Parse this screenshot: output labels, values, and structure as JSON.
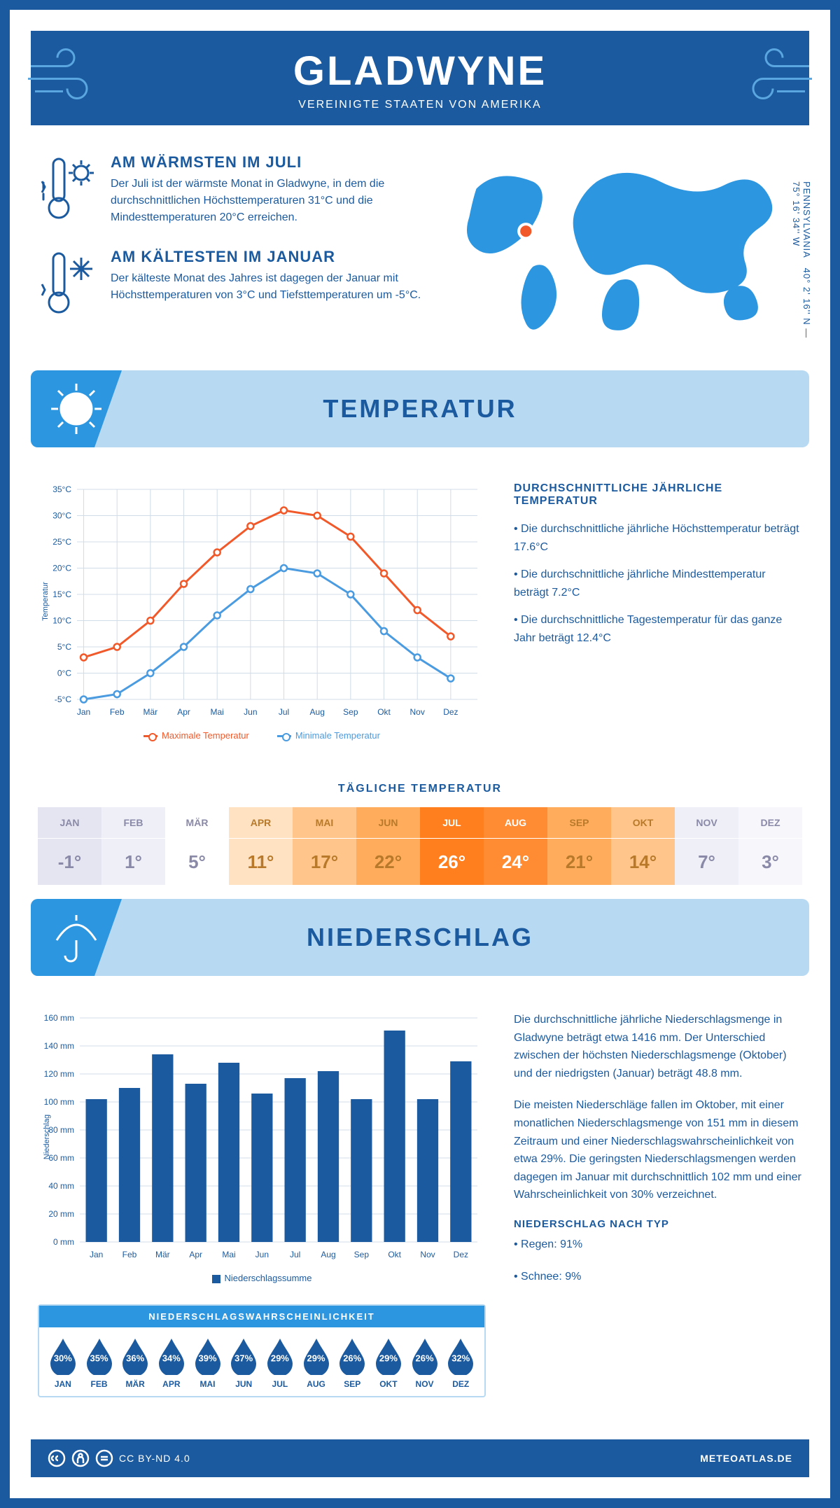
{
  "colors": {
    "brand": "#1b5a9e",
    "light_blue": "#b8d9f2",
    "accent_blue": "#2d96e0",
    "line_max": "#f1592a",
    "line_min": "#4a9be0",
    "grid": "#d0dce8"
  },
  "header": {
    "title": "GLADWYNE",
    "subtitle": "VEREINIGTE STAATEN VON AMERIKA"
  },
  "coords": {
    "line1": "40° 2' 16'' N — 75° 16' 34'' W",
    "line2": "PENNSYLVANIA"
  },
  "facts": {
    "warm_title": "AM WÄRMSTEN IM JULI",
    "warm_text": "Der Juli ist der wärmste Monat in Gladwyne, in dem die durchschnittlichen Höchsttemperaturen 31°C und die Mindesttemperaturen 20°C erreichen.",
    "cold_title": "AM KÄLTESTEN IM JANUAR",
    "cold_text": "Der kälteste Monat des Jahres ist dagegen der Januar mit Höchsttemperaturen von 3°C und Tiefsttemperaturen um -5°C."
  },
  "section_titles": {
    "temperature": "TEMPERATUR",
    "precip": "NIEDERSCHLAG"
  },
  "temp_chart": {
    "type": "line",
    "months": [
      "Jan",
      "Feb",
      "Mär",
      "Apr",
      "Mai",
      "Jun",
      "Jul",
      "Aug",
      "Sep",
      "Okt",
      "Nov",
      "Dez"
    ],
    "y_min": -5,
    "y_max": 35,
    "y_step": 5,
    "ylabel": "Temperatur",
    "series": [
      {
        "name": "Maximale Temperatur",
        "color": "#f1592a",
        "values": [
          3,
          5,
          10,
          17,
          23,
          28,
          31,
          30,
          26,
          19,
          12,
          7
        ]
      },
      {
        "name": "Minimale Temperatur",
        "color": "#4a9be0",
        "values": [
          -5,
          -4,
          0,
          5,
          11,
          16,
          20,
          19,
          15,
          8,
          3,
          -1
        ]
      }
    ],
    "legend_max": "Maximale Temperatur",
    "legend_min": "Minimale Temperatur"
  },
  "temp_text": {
    "heading": "DURCHSCHNITTLICHE JÄHRLICHE TEMPERATUR",
    "b1": "• Die durchschnittliche jährliche Höchsttemperatur beträgt 17.6°C",
    "b2": "• Die durchschnittliche jährliche Mindesttemperatur beträgt 7.2°C",
    "b3": "• Die durchschnittliche Tagestemperatur für das ganze Jahr beträgt 12.4°C"
  },
  "daily_temp": {
    "title": "TÄGLICHE TEMPERATUR",
    "months": [
      "JAN",
      "FEB",
      "MÄR",
      "APR",
      "MAI",
      "JUN",
      "JUL",
      "AUG",
      "SEP",
      "OKT",
      "NOV",
      "DEZ"
    ],
    "values": [
      "-1°",
      "1°",
      "5°",
      "11°",
      "17°",
      "22°",
      "26°",
      "24°",
      "21°",
      "14°",
      "7°",
      "3°"
    ],
    "bg_colors": [
      "#e5e5f2",
      "#efeff7",
      "#ffffff",
      "#ffe2c2",
      "#ffc58a",
      "#ffad5c",
      "#ff7f1f",
      "#ff8c33",
      "#ffad5c",
      "#ffc58a",
      "#efeff7",
      "#f7f7fb"
    ],
    "text_colors": [
      "#8a8aa8",
      "#8a8aa8",
      "#8a8aa8",
      "#b87a2a",
      "#b87a2a",
      "#b87a2a",
      "#ffffff",
      "#ffffff",
      "#b87a2a",
      "#b87a2a",
      "#8a8aa8",
      "#8a8aa8"
    ]
  },
  "precip_chart": {
    "type": "bar",
    "months": [
      "Jan",
      "Feb",
      "Mär",
      "Apr",
      "Mai",
      "Jun",
      "Jul",
      "Aug",
      "Sep",
      "Okt",
      "Nov",
      "Dez"
    ],
    "values": [
      102,
      110,
      134,
      113,
      128,
      106,
      117,
      122,
      102,
      151,
      102,
      129
    ],
    "y_min": 0,
    "y_max": 160,
    "y_step": 20,
    "ylabel": "Niederschlag",
    "bar_color": "#1b5a9e",
    "legend": "Niederschlagssumme"
  },
  "precip_text": {
    "p1": "Die durchschnittliche jährliche Niederschlagsmenge in Gladwyne beträgt etwa 1416 mm. Der Unterschied zwischen der höchsten Niederschlagsmenge (Oktober) und der niedrigsten (Januar) beträgt 48.8 mm.",
    "p2": "Die meisten Niederschläge fallen im Oktober, mit einer monatlichen Niederschlagsmenge von 151 mm in diesem Zeitraum und einer Niederschlagswahrscheinlichkeit von etwa 29%. Die geringsten Niederschlagsmengen werden dagegen im Januar mit durchschnittlich 102 mm und einer Wahrscheinlichkeit von 30% verzeichnet.",
    "type_title": "NIEDERSCHLAG NACH TYP",
    "type1": "• Regen: 91%",
    "type2": "• Schnee: 9%"
  },
  "prob": {
    "title": "NIEDERSCHLAGSWAHRSCHEINLICHKEIT",
    "months": [
      "JAN",
      "FEB",
      "MÄR",
      "APR",
      "MAI",
      "JUN",
      "JUL",
      "AUG",
      "SEP",
      "OKT",
      "NOV",
      "DEZ"
    ],
    "values": [
      "30%",
      "35%",
      "36%",
      "34%",
      "39%",
      "37%",
      "29%",
      "29%",
      "26%",
      "29%",
      "26%",
      "32%"
    ]
  },
  "footer": {
    "license": "CC BY-ND 4.0",
    "site": "METEOATLAS.DE"
  }
}
